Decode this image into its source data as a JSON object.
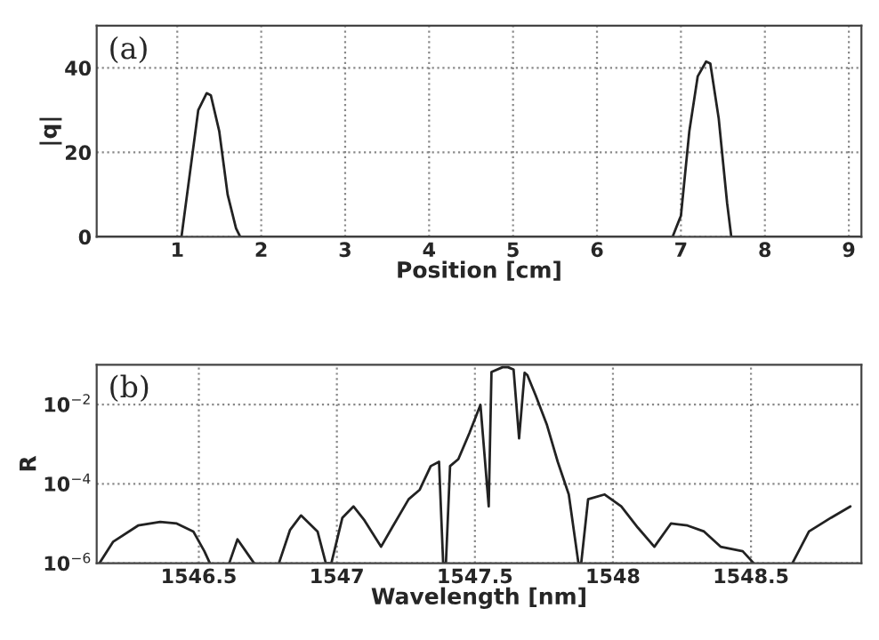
{
  "chart_data": [
    {
      "type": "line",
      "xlabel": "Position [cm]",
      "ylabel": "|q|",
      "annotations": [
        "(a)"
      ],
      "series": [
        {
          "color": "#222222",
          "x": [
            0.04,
            1.05,
            1.15,
            1.25,
            1.35,
            1.4,
            1.5,
            1.6,
            1.7,
            1.75,
            6.9,
            7.0,
            7.1,
            7.2,
            7.3,
            7.35,
            7.45,
            7.55,
            7.6,
            9.15
          ],
          "values": [
            0,
            0,
            15,
            30,
            34,
            33.5,
            25,
            10,
            2,
            0,
            0,
            5,
            25,
            38,
            41.5,
            41,
            28,
            8,
            0,
            0
          ]
        }
      ],
      "xlim": [
        0.04,
        9.15
      ],
      "ylim": [
        0,
        50
      ],
      "xticks": [
        1,
        2,
        3,
        4,
        5,
        6,
        7,
        8,
        9
      ],
      "yticks": [
        0,
        20,
        40
      ],
      "grid": true,
      "line_style": "solid"
    },
    {
      "type": "line",
      "xlabel": "Wavelength [nm]",
      "ylabel": "R",
      "annotations": [
        "(b)"
      ],
      "log": "y",
      "series": [
        {
          "color": "#222222",
          "x": [
            1546.14,
            1546.19,
            1546.28,
            1546.36,
            1546.42,
            1546.48,
            1546.52,
            1546.54,
            1546.58,
            1546.61,
            1546.64,
            1546.67,
            1546.7,
            1546.74,
            1546.79,
            1546.83,
            1546.87,
            1546.93,
            1546.96,
            1546.98,
            1547.02,
            1547.06,
            1547.1,
            1547.16,
            1547.2,
            1547.26,
            1547.3,
            1547.34,
            1547.37,
            1547.385,
            1547.395,
            1547.41,
            1547.44,
            1547.48,
            1547.52,
            1547.55,
            1547.56,
            1547.6,
            1547.62,
            1547.64,
            1547.66,
            1547.68,
            1547.69,
            1547.72,
            1547.76,
            1547.8,
            1547.84,
            1547.875,
            1547.885,
            1547.91,
            1547.97,
            1548.03,
            1548.09,
            1548.15,
            1548.21,
            1548.27,
            1548.33,
            1548.39,
            1548.47,
            1548.51,
            1548.58,
            1548.65,
            1548.71,
            1548.79,
            1548.86
          ],
          "values": [
            1e-06,
            3.5e-06,
            8.9e-06,
            1.1e-05,
            1e-05,
            6.3e-06,
            2e-06,
            1e-06,
            null,
            1e-06,
            4e-06,
            2e-06,
            1e-06,
            null,
            1e-06,
            6.8e-06,
            1.6e-05,
            6.3e-06,
            1e-06,
            1e-06,
            1.4e-05,
            2.7e-05,
            1.2e-05,
            2.6e-06,
            7.9e-06,
            4.1e-05,
            7.1e-05,
            0.00028,
            0.00036,
            1e-06,
            1e-06,
            0.00028,
            0.00042,
            0.0019,
            0.0098,
            2.7e-05,
            0.066,
            0.087,
            0.087,
            0.076,
            0.0014,
            0.063,
            0.055,
            0.017,
            0.0032,
            0.00036,
            5.4e-05,
            1e-06,
            1e-06,
            4.1e-05,
            5.4e-05,
            2.7e-05,
            7.9e-06,
            2.6e-06,
            1e-05,
            8.9e-06,
            6.3e-06,
            2.6e-06,
            2e-06,
            1e-06,
            null,
            1e-06,
            6.3e-06,
            1.4e-05,
            2.7e-05
          ]
        }
      ],
      "xlim": [
        1546.13,
        1548.9
      ],
      "ylim": [
        1e-06,
        0.1
      ],
      "xticks": [
        1546.5,
        1547,
        1547.5,
        1548,
        1548.5
      ],
      "yticks": [
        {
          "value": 1e-06,
          "label": "10$^{−6}$"
        },
        {
          "value": 0.0001,
          "label": "10$^{−4}$"
        },
        {
          "value": 0.01,
          "label": "10$^{−2}$"
        }
      ],
      "grid": true,
      "line_style": "solid"
    }
  ]
}
